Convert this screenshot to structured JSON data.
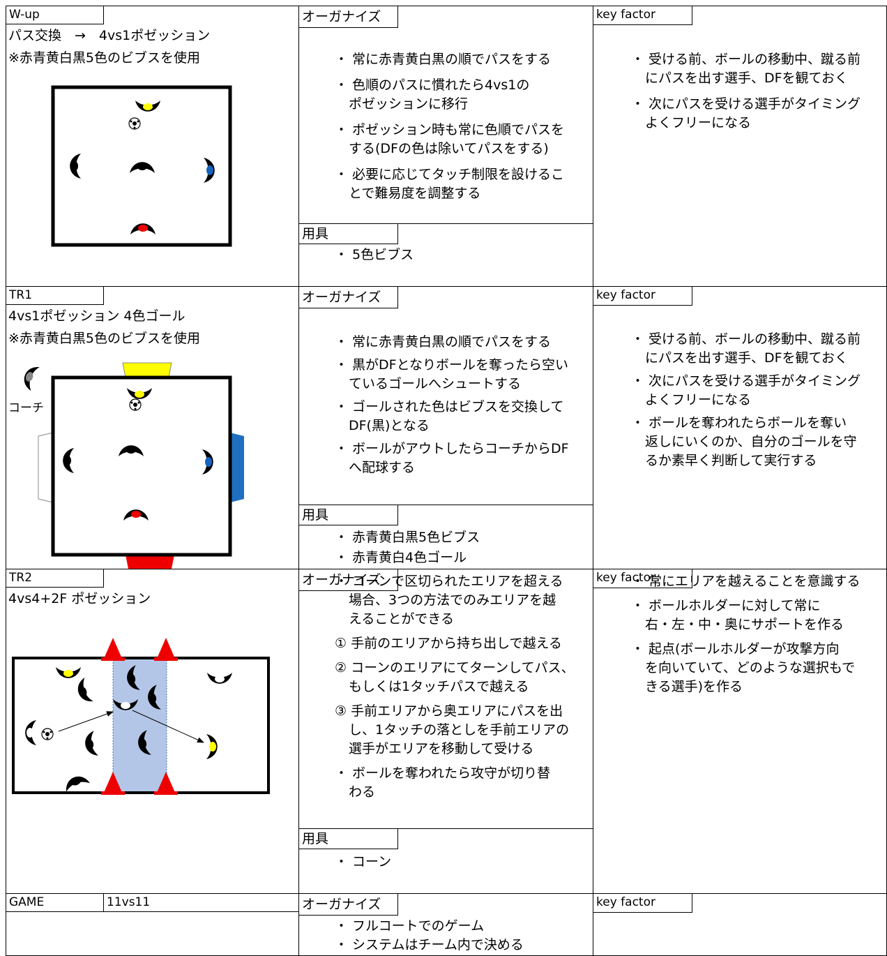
{
  "sections": [
    {
      "tab": "W-up",
      "title": [
        "パス交換　→　4vs1ポゼッション",
        "※赤青黄白黒5色のビブスを使用"
      ],
      "organize_tab": "オーガナイズ",
      "organize": [
        [
          "・ 常に赤青黄白黒の順でパスをする"
        ],
        [
          "・ 色順のパスに慣れたら4vs1の",
          "ポゼッションに移行"
        ],
        [
          "・ ポゼッション時も常に色順でパスを",
          "する(DFの色は除いてパスをする)"
        ],
        [
          "・ 必要に応じてタッチ制限を設けるこ",
          "とで難易度を調整する"
        ]
      ],
      "equipment_tab": "用具",
      "equipment": [
        [
          "・ 5色ビブス"
        ]
      ],
      "key_tab": "key factor",
      "key": [
        [
          "・ 受ける前、ボールの移動中、蹴る前",
          "にパスを出す選手、DFを観ておく"
        ],
        [
          "・ 次にパスを受ける選手がタイミング",
          "よくフリーになる"
        ]
      ]
    },
    {
      "tab": "TR1",
      "title": [
        "4vs1ポゼッション 4色ゴール",
        "※赤青黄白黒5色のビブスを使用"
      ],
      "coach_label": "コーチ",
      "organize_tab": "オーガナイズ",
      "organize": [
        [
          "・ 常に赤青黄白黒の順でパスをする"
        ],
        [
          "・ 黒がDFとなりボールを奪ったら空い",
          "ているゴールへシュートする"
        ],
        [
          "・ ゴールされた色はビブスを交換して",
          "DF(黒)となる"
        ],
        [
          "・ ボールがアウトしたらコーチからDF",
          "へ配球する"
        ]
      ],
      "equipment_tab": "用具",
      "equipment": [
        [
          "・ 赤青黄白黒5色ビブス"
        ],
        [
          "・ 赤青黄白4色ゴール"
        ]
      ],
      "key_tab": "key factor",
      "key": [
        [
          "・ 受ける前、ボールの移動中、蹴る前",
          "にパスを出す選手、DFを観ておく"
        ],
        [
          "・ 次にパスを受ける選手がタイミング",
          "よくフリーになる"
        ],
        [
          "・ ボールを奪われたらボールを奪い",
          "返しにいくのか、自分のゴールを守",
          "るか素早く判断して実行する"
        ]
      ]
    },
    {
      "tab": "TR2",
      "title": [
        "4vs4+2F ポゼッション"
      ],
      "organize_tab": "オーガナイズ",
      "organize": [
        [
          "・ コーンで区切られたエリアを超える",
          "場合、3つの方法でのみエリアを越",
          "えることができる"
        ],
        [
          "① 手前のエリアから持ち出しで越える"
        ],
        [
          "② コーンのエリアにてターンしてパス、",
          "もしくは1タッチパスで越える"
        ],
        [
          "③ 手前エリアから奥エリアにパスを出",
          "し、1タッチの落としを手前エリアの",
          "選手がエリアを移動して受ける"
        ],
        [
          "・ ボールを奪われたら攻守が切り替",
          "わる"
        ]
      ],
      "equipment_tab": "用具",
      "equipment": [
        [
          "・ コーン"
        ]
      ],
      "key_tab": "key factor",
      "key": [
        [
          "・ 常にエリアを越えることを意識する"
        ],
        [
          "・ ボールホルダーに対して常に",
          "右・左・中・奥にサポートを作る"
        ],
        [
          "・ 起点(ボールホルダーが攻撃方向",
          "を向いていて、どのような選択もで",
          "きる選手)を作る"
        ]
      ]
    },
    {
      "tab": "GAME",
      "tab2": "11vs11",
      "organize_tab": "オーガナイズ",
      "organize": [
        [
          "・ フルコートでのゲーム"
        ],
        [
          "・ システムはチーム内で決める"
        ]
      ],
      "key_tab": "key factor"
    }
  ]
}
